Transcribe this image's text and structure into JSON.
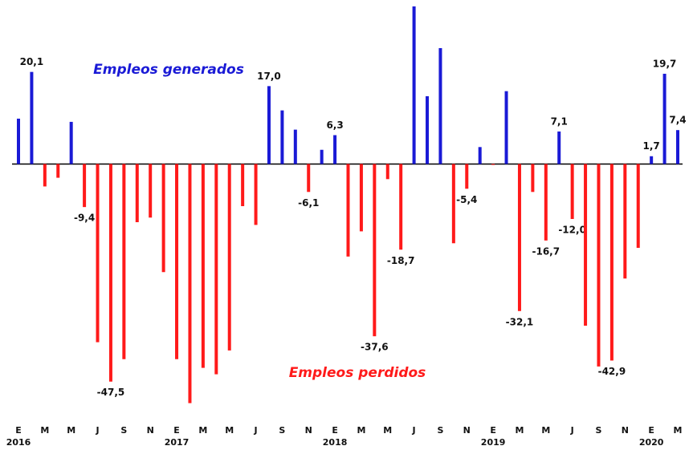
{
  "chart_data": {
    "type": "bar",
    "annotations": [
      "Empleos generados",
      "Empleos perdidos"
    ],
    "categories": [
      "E",
      null,
      "M",
      null,
      "M",
      null,
      "J",
      null,
      "S",
      null,
      "N",
      null,
      "E",
      null,
      "M",
      null,
      "M",
      null,
      "J",
      null,
      "S",
      null,
      "N",
      null,
      "E",
      null,
      "M",
      null,
      "M",
      null,
      "J",
      null,
      "S",
      null,
      "N",
      null,
      "E",
      null,
      "M",
      null,
      "M",
      null,
      "J",
      null,
      "S",
      null,
      "N",
      null,
      "E",
      null,
      "M"
    ],
    "years": [
      "2016",
      null,
      null,
      null,
      null,
      null,
      null,
      null,
      null,
      null,
      null,
      null,
      "2017",
      null,
      null,
      null,
      null,
      null,
      null,
      null,
      null,
      null,
      null,
      null,
      "2018",
      null,
      null,
      null,
      null,
      null,
      null,
      null,
      null,
      null,
      null,
      null,
      "2019",
      null,
      null,
      null,
      null,
      null,
      null,
      null,
      null,
      null,
      null,
      null,
      "2020",
      null,
      null
    ],
    "values": [
      9.9,
      20.1,
      -4.9,
      -3.0,
      9.2,
      -9.4,
      -38.9,
      -47.5,
      -42.6,
      -12.7,
      -11.7,
      -23.6,
      -42.6,
      -52.2,
      -44.5,
      -45.9,
      -40.7,
      -9.2,
      -13.3,
      17.0,
      11.7,
      7.5,
      -6.1,
      3.1,
      6.3,
      -20.2,
      -14.7,
      -37.6,
      -3.3,
      -18.7,
      34.4,
      14.8,
      25.3,
      -17.3,
      -5.4,
      3.7,
      -0.2,
      15.9,
      -32.1,
      -6.1,
      -16.7,
      7.1,
      -12.0,
      -35.3,
      -44.2,
      -42.9,
      -25.0,
      -18.3,
      1.7,
      19.7,
      7.4
    ],
    "value_labels": [
      null,
      "20,1",
      null,
      null,
      null,
      "-9,4",
      null,
      "-47,5",
      null,
      null,
      null,
      null,
      null,
      null,
      null,
      null,
      null,
      null,
      null,
      "17,0",
      null,
      null,
      "-6,1",
      null,
      "6,3",
      null,
      null,
      "-37,6",
      null,
      "-18,7",
      null,
      null,
      null,
      null,
      "-5,4",
      null,
      null,
      null,
      "-32,1",
      null,
      "-16,7",
      "7,1",
      "-12,0",
      null,
      null,
      "-42,9",
      null,
      null,
      "1,7",
      "19,7",
      "7,4"
    ],
    "positive_color": "#1a1ad6",
    "negative_color": "#ff1a1a",
    "ylim": [
      -53.5,
      35.8
    ]
  }
}
